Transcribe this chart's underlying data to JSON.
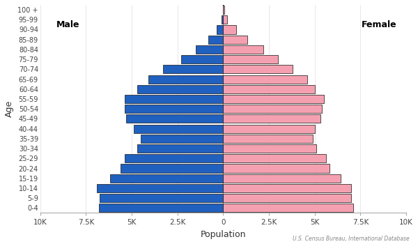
{
  "age_groups": [
    "0-4",
    "5-9",
    "10-14",
    "15-19",
    "20-24",
    "25-29",
    "30-34",
    "35-39",
    "40-44",
    "45-49",
    "50-54",
    "55-59",
    "60-64",
    "65-69",
    "70-74",
    "75-79",
    "80-84",
    "85-89",
    "90-94",
    "95-99",
    "100 +"
  ],
  "male": [
    6800,
    6750,
    6900,
    6200,
    5600,
    5400,
    4700,
    4500,
    4900,
    5300,
    5400,
    5400,
    4700,
    4100,
    3300,
    2300,
    1500,
    800,
    350,
    100,
    25
  ],
  "female": [
    7100,
    7000,
    7000,
    6400,
    5800,
    5600,
    5100,
    4900,
    5000,
    5300,
    5400,
    5500,
    5000,
    4600,
    3800,
    3000,
    2200,
    1300,
    700,
    220,
    55
  ],
  "male_color": "#2060bf",
  "female_color": "#f5a0b0",
  "male_edge": "#111111",
  "female_edge": "#111111",
  "xlabel": "Population",
  "ylabel": "Age",
  "xlim": 10000,
  "xticks": [
    -10000,
    -7500,
    -5000,
    -2500,
    0,
    2500,
    5000,
    7500,
    10000
  ],
  "xtick_labels": [
    "10K",
    "7.5K",
    "5K",
    "2.5K",
    "0",
    "2.5K",
    "5K",
    "7.5K",
    "10K"
  ],
  "male_label": "Male",
  "female_label": "Female",
  "source_text": "U.S. Census Bureau, International Database",
  "bg_color": "#ffffff",
  "bar_height": 0.85,
  "spine_color": "#aaaaaa"
}
